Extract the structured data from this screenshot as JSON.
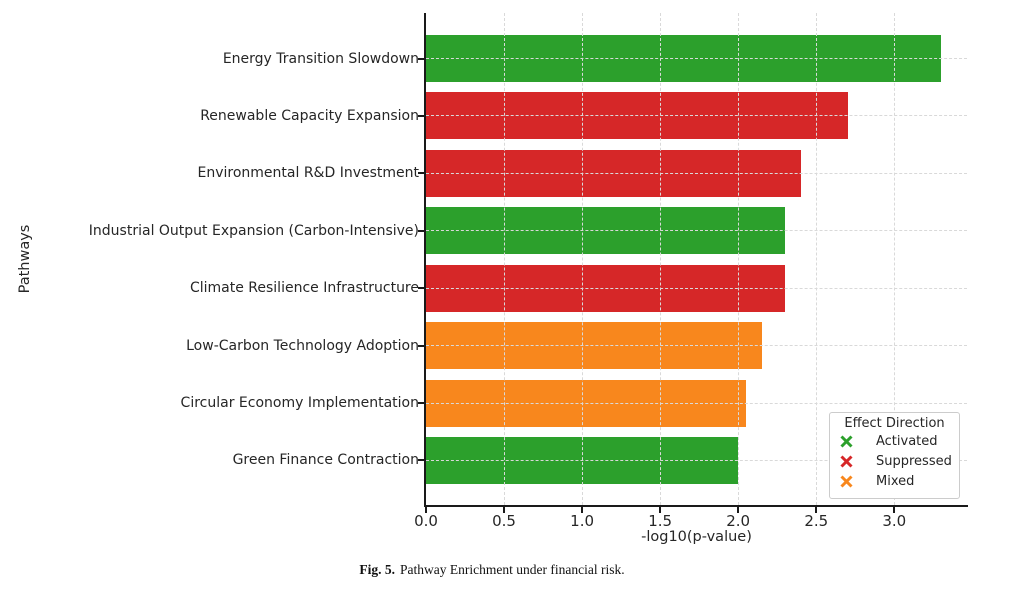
{
  "figure": {
    "caption": {
      "label": "Fig. 5.",
      "text": "Pathway Enrichment under financial risk."
    }
  },
  "chart_data": {
    "type": "bar",
    "orientation": "horizontal",
    "title": "",
    "xlabel": "-log10(p-value)",
    "ylabel": "Pathways",
    "xlim": [
      0,
      3.47
    ],
    "grid": "both-dashed",
    "categories": [
      "Energy Transition Slowdown",
      "Renewable Capacity Expansion",
      "Environmental R&D Investment",
      "Industrial Output Expansion (Carbon-Intensive)",
      "Climate Resilience Infrastructure",
      "Low-Carbon Technology Adoption",
      "Circular Economy Implementation",
      "Green Finance Contraction"
    ],
    "values": [
      3.3,
      2.7,
      2.4,
      2.3,
      2.3,
      2.15,
      2.05,
      2.0
    ],
    "effects": [
      "activated",
      "suppressed",
      "suppressed",
      "activated",
      "suppressed",
      "mixed",
      "mixed",
      "activated"
    ],
    "colors": {
      "activated": "#2ca02c",
      "suppressed": "#d62728",
      "mixed": "#f8871d",
      "grid": "#d9d9d9",
      "spine": "#1a1a1a",
      "text": "#262626"
    },
    "xticks": {
      "values": [
        0.0,
        0.5,
        1.0,
        1.5,
        2.0,
        2.5,
        3.0
      ],
      "labels": [
        "0.0",
        "0.5",
        "1.0",
        "1.5",
        "2.0",
        "2.5",
        "3.0"
      ]
    },
    "legend": {
      "title": "Effect Direction",
      "position": "lower right",
      "marker": "x",
      "entries": [
        {
          "label": "Activated",
          "effect": "activated"
        },
        {
          "label": "Suppressed",
          "effect": "suppressed"
        },
        {
          "label": "Mixed",
          "effect": "mixed"
        }
      ]
    }
  }
}
